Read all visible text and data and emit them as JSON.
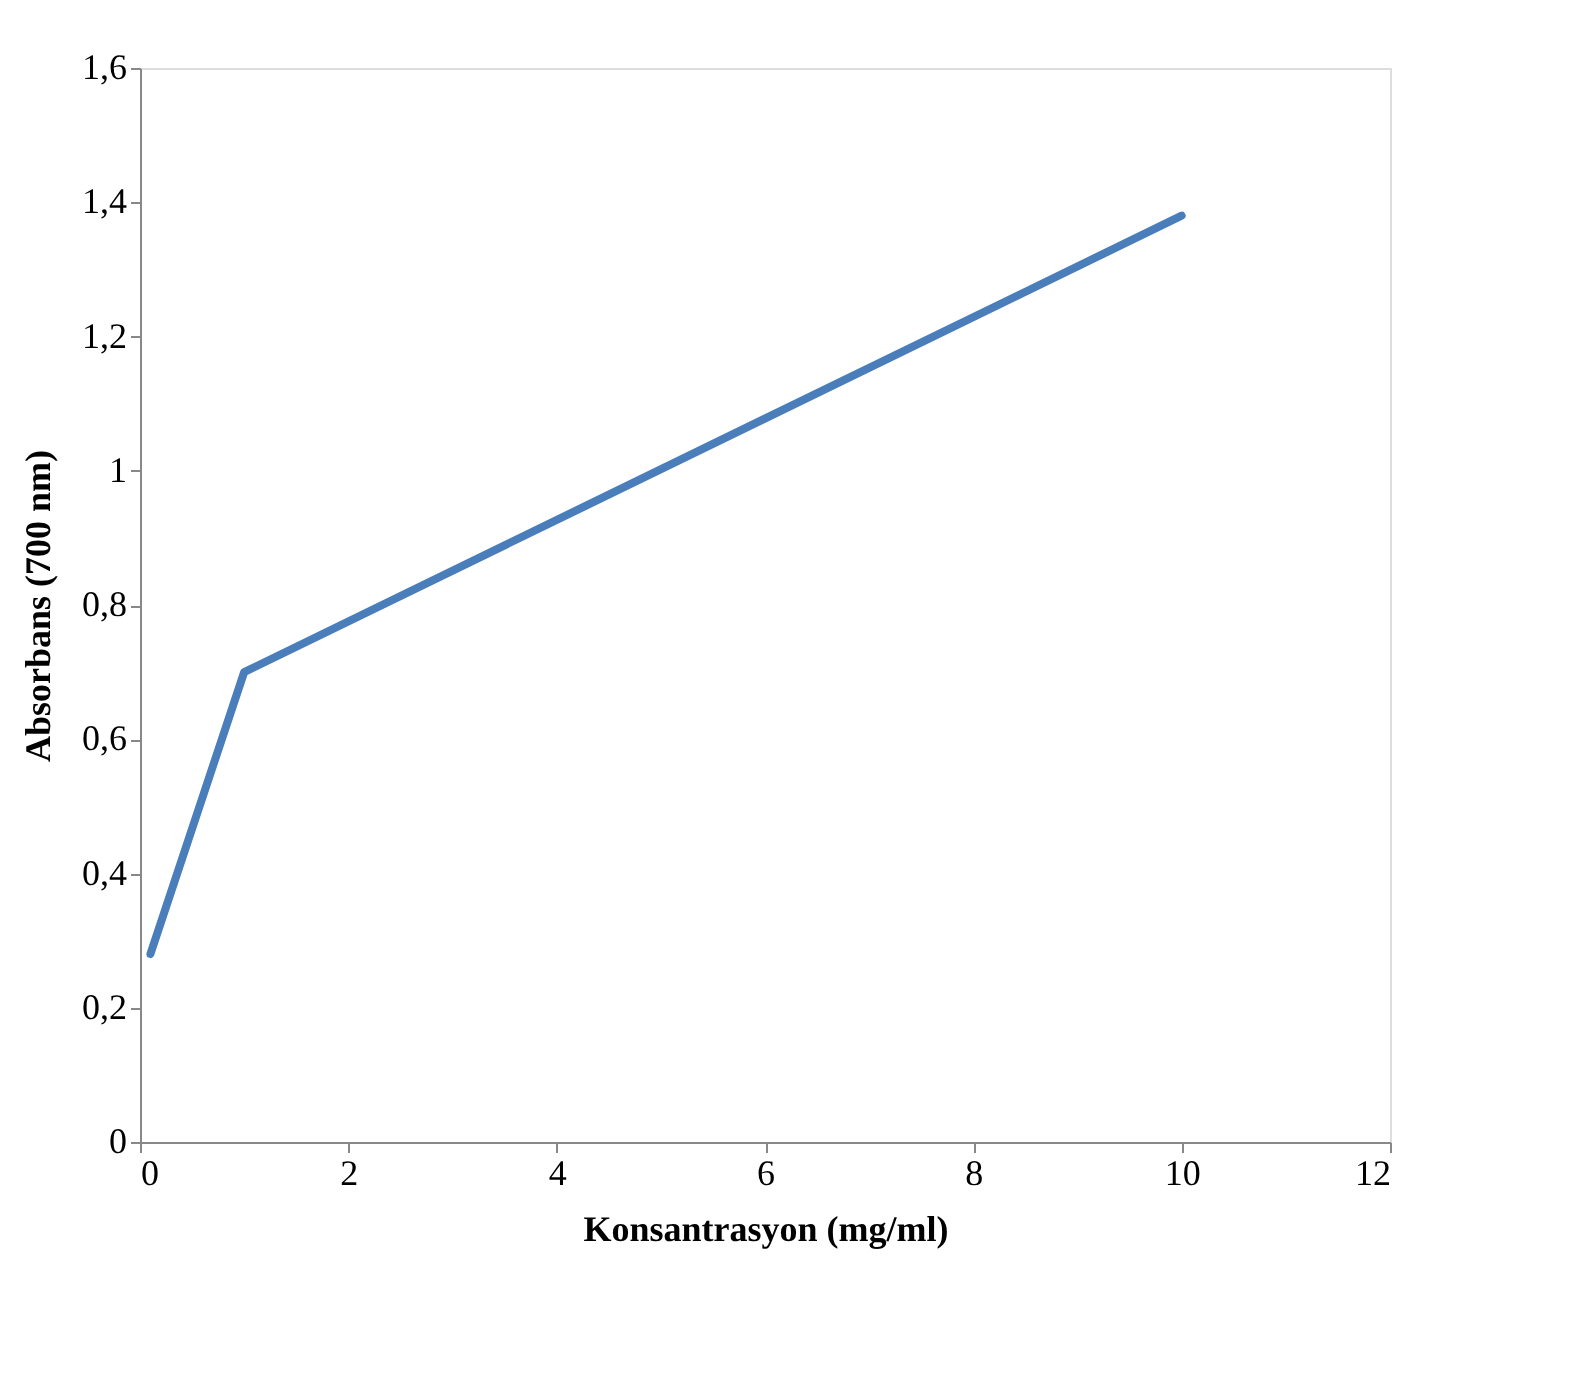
{
  "chart_data": {
    "type": "line",
    "xlabel": "Konsantrasyon (mg/ml)",
    "ylabel": "Absorbans (700 nm)",
    "x": [
      0.1,
      1,
      10
    ],
    "series": [
      {
        "color": "#4a7ebb",
        "values": [
          0.28,
          0.7,
          1.38
        ]
      }
    ],
    "xlim": [
      0,
      12
    ],
    "xticks": [
      0,
      2,
      4,
      6,
      8,
      10,
      12
    ],
    "ylim": [
      0,
      1.6
    ],
    "yticks": [
      {
        "value": 0,
        "label": "0"
      },
      {
        "value": 0.2,
        "label": "0,2"
      },
      {
        "value": 0.4,
        "label": "0,4"
      },
      {
        "value": 0.6,
        "label": "0,6"
      },
      {
        "value": 0.8,
        "label": "0,8"
      },
      {
        "value": 1,
        "label": "1"
      },
      {
        "value": 1.2,
        "label": "1,2"
      },
      {
        "value": 1.4,
        "label": "1,4"
      },
      {
        "value": 1.6,
        "label": "1,6"
      }
    ],
    "grid": false,
    "legend": false,
    "marker": "none",
    "line_style": "solid"
  }
}
